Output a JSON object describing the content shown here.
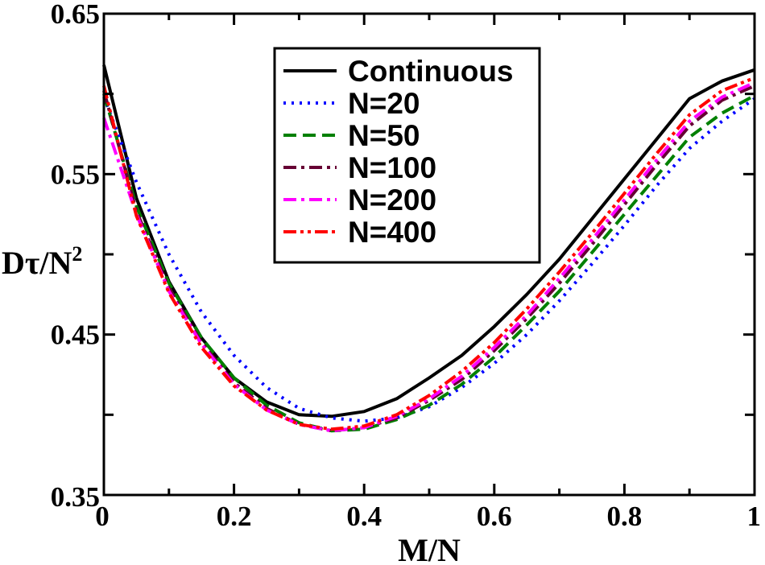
{
  "chart_data": {
    "type": "line",
    "title": "",
    "xlabel": "M/N",
    "ylabel": {
      "main": "Dτ/N",
      "sup": "2"
    },
    "xlim": [
      0,
      1
    ],
    "ylim": [
      0.35,
      0.65
    ],
    "xticks": [
      0,
      0.2,
      0.4,
      0.6,
      0.8,
      1
    ],
    "xtick_labels": [
      "0",
      "0.2",
      "0.4",
      "0.6",
      "0.8",
      "1"
    ],
    "yticks": [
      0.35,
      0.45,
      0.55,
      0.65
    ],
    "ytick_labels": [
      "0.35",
      "0.45",
      "0.55",
      "0.65"
    ],
    "yminor_ticks": [
      0.4,
      0.5,
      0.6
    ],
    "xminor_ticks": [
      0.1,
      0.3,
      0.5,
      0.7,
      0.9
    ],
    "grid": false,
    "legend_position": "top-center",
    "series": [
      {
        "name": "Continuous",
        "color": "#000000",
        "dash": "solid",
        "x": [
          0,
          0.05,
          0.1,
          0.15,
          0.2,
          0.25,
          0.3,
          0.35,
          0.4,
          0.45,
          0.5,
          0.55,
          0.6,
          0.65,
          0.7,
          0.75,
          0.8,
          0.85,
          0.9,
          0.95,
          1
        ],
        "y": [
          0.618,
          0.535,
          0.483,
          0.448,
          0.423,
          0.408,
          0.4,
          0.399,
          0.402,
          0.41,
          0.423,
          0.437,
          0.455,
          0.475,
          0.497,
          0.522,
          0.547,
          0.572,
          0.597,
          0.608,
          0.615
        ]
      },
      {
        "name": "N=20",
        "color": "#0000ff",
        "dash": "dot",
        "x": [
          0,
          0.05,
          0.1,
          0.15,
          0.2,
          0.25,
          0.3,
          0.35,
          0.4,
          0.45,
          0.5,
          0.55,
          0.6,
          0.65,
          0.7,
          0.75,
          0.8,
          0.85,
          0.9,
          0.95,
          1
        ],
        "y": [
          0.598,
          0.545,
          0.5,
          0.464,
          0.437,
          0.417,
          0.404,
          0.398,
          0.396,
          0.398,
          0.405,
          0.417,
          0.432,
          0.45,
          0.471,
          0.494,
          0.518,
          0.543,
          0.566,
          0.583,
          0.597
        ]
      },
      {
        "name": "N=50",
        "color": "#008000",
        "dash": "dash",
        "x": [
          0,
          0.05,
          0.1,
          0.15,
          0.2,
          0.25,
          0.3,
          0.35,
          0.4,
          0.45,
          0.5,
          0.55,
          0.6,
          0.65,
          0.7,
          0.75,
          0.8,
          0.85,
          0.9,
          0.95,
          1
        ],
        "y": [
          0.6,
          0.53,
          0.482,
          0.448,
          0.423,
          0.406,
          0.395,
          0.39,
          0.391,
          0.397,
          0.406,
          0.419,
          0.436,
          0.456,
          0.477,
          0.501,
          0.525,
          0.549,
          0.573,
          0.588,
          0.599
        ]
      },
      {
        "name": "N=100",
        "color": "#660033",
        "dash": "dashdot",
        "x": [
          0,
          0.05,
          0.1,
          0.15,
          0.2,
          0.25,
          0.3,
          0.35,
          0.4,
          0.45,
          0.5,
          0.55,
          0.6,
          0.65,
          0.7,
          0.75,
          0.8,
          0.85,
          0.9,
          0.95,
          1
        ],
        "y": [
          0.602,
          0.527,
          0.479,
          0.445,
          0.42,
          0.404,
          0.394,
          0.39,
          0.392,
          0.398,
          0.409,
          0.422,
          0.44,
          0.46,
          0.482,
          0.506,
          0.531,
          0.556,
          0.58,
          0.596,
          0.605
        ]
      },
      {
        "name": "N=200",
        "color": "#ff00ff",
        "dash": "dashdot",
        "x": [
          0,
          0.05,
          0.1,
          0.15,
          0.2,
          0.25,
          0.3,
          0.35,
          0.4,
          0.45,
          0.5,
          0.55,
          0.6,
          0.65,
          0.7,
          0.75,
          0.8,
          0.85,
          0.9,
          0.95,
          1
        ],
        "y": [
          0.585,
          0.525,
          0.477,
          0.444,
          0.419,
          0.403,
          0.394,
          0.39,
          0.392,
          0.399,
          0.41,
          0.424,
          0.442,
          0.462,
          0.485,
          0.509,
          0.534,
          0.559,
          0.583,
          0.598,
          0.607
        ]
      },
      {
        "name": "N=400",
        "color": "#ff0000",
        "dash": "dashdotdot",
        "x": [
          0,
          0.05,
          0.1,
          0.15,
          0.2,
          0.25,
          0.3,
          0.35,
          0.4,
          0.45,
          0.5,
          0.55,
          0.6,
          0.65,
          0.7,
          0.75,
          0.8,
          0.85,
          0.9,
          0.95,
          1
        ],
        "y": [
          0.605,
          0.524,
          0.476,
          0.442,
          0.418,
          0.403,
          0.394,
          0.391,
          0.393,
          0.4,
          0.412,
          0.427,
          0.445,
          0.466,
          0.489,
          0.513,
          0.538,
          0.563,
          0.587,
          0.602,
          0.61
        ]
      }
    ]
  }
}
